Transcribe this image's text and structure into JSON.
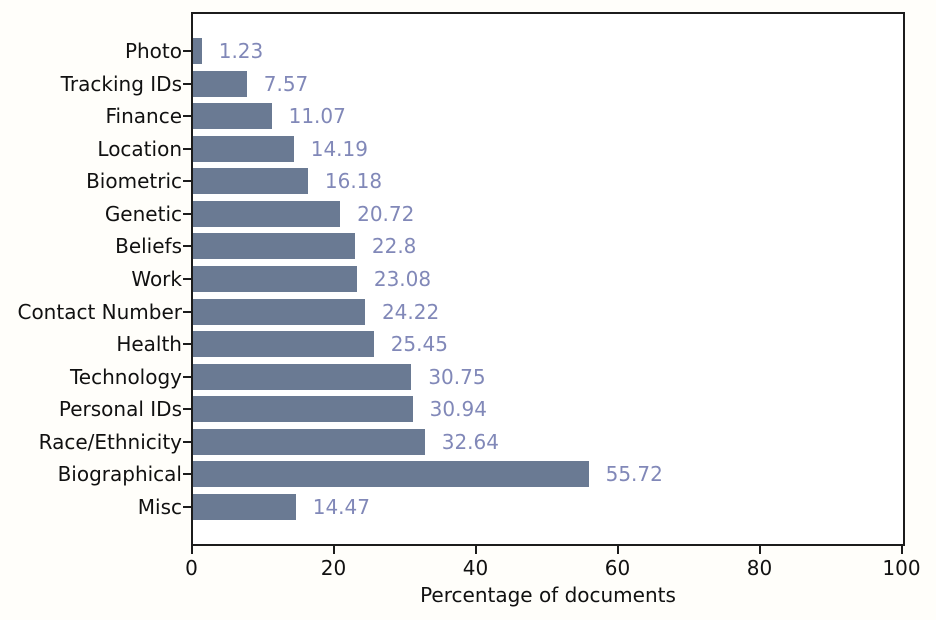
{
  "chart_data": {
    "type": "bar",
    "orientation": "horizontal",
    "title": "",
    "xlabel": "Percentage of documents",
    "ylabel": "",
    "categories": [
      "Photo",
      "Tracking IDs",
      "Finance",
      "Location",
      "Biometric",
      "Genetic",
      "Beliefs",
      "Work",
      "Contact Number",
      "Health",
      "Technology",
      "Personal IDs",
      "Race/Ethnicity",
      "Biographical",
      "Misc"
    ],
    "values": [
      1.23,
      7.57,
      11.07,
      14.19,
      16.18,
      20.72,
      22.8,
      23.08,
      24.22,
      25.45,
      30.75,
      30.94,
      32.64,
      55.72,
      14.47
    ],
    "xlim": [
      0,
      100
    ],
    "x_ticks": [
      0,
      20,
      40,
      60,
      80,
      100
    ],
    "grid": false,
    "legend": false,
    "value_labels_shown": true,
    "colors": {
      "bar": "#6a7a93",
      "value_label": "#8188b8",
      "axis": "#1c1c1c",
      "tick_label": "#111111",
      "background": "#fffefa"
    }
  }
}
